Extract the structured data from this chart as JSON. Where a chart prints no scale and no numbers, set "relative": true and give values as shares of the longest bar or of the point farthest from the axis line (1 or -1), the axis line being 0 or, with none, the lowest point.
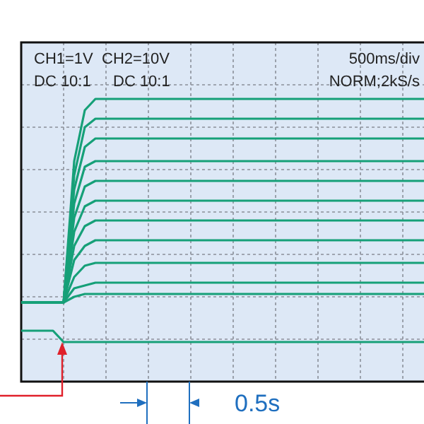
{
  "chart_data": {
    "type": "line",
    "relative": true,
    "grid": true,
    "legend": false,
    "marker": "none",
    "line_style": "solid",
    "categories": [
      null,
      null,
      null,
      null,
      null,
      null,
      null,
      null,
      null,
      null,
      null,
      null,
      null,
      null,
      null,
      null,
      null,
      null,
      null,
      null,
      null,
      null,
      null,
      null,
      null,
      null,
      null,
      null,
      null,
      null,
      null,
      null,
      null,
      null,
      null,
      null,
      null,
      null,
      null
    ],
    "series": [
      {
        "color": "#16a078",
        "values": [
          0.28,
          0.28,
          0.28,
          0.28,
          0.28,
          0.78,
          0.96,
          1.0,
          1.0,
          1.0,
          1.0,
          1.0,
          1.0,
          1.0,
          1.0,
          1.0,
          1.0,
          1.0,
          1.0,
          1.0,
          1.0,
          1.0,
          1.0,
          1.0,
          1.0,
          1.0,
          1.0,
          1.0,
          1.0,
          1.0,
          1.0,
          1.0,
          1.0,
          1.0,
          1.0,
          1.0,
          1.0,
          1.0,
          1.0
        ]
      },
      {
        "color": "#16a078",
        "values": [
          0.28,
          0.28,
          0.28,
          0.28,
          0.28,
          0.73,
          0.9,
          0.93,
          0.93,
          0.93,
          0.93,
          0.93,
          0.93,
          0.93,
          0.93,
          0.93,
          0.93,
          0.93,
          0.93,
          0.93,
          0.93,
          0.93,
          0.93,
          0.93,
          0.93,
          0.93,
          0.93,
          0.93,
          0.93,
          0.93,
          0.93,
          0.93,
          0.93,
          0.93,
          0.93,
          0.93,
          0.93,
          0.93,
          0.93
        ]
      },
      {
        "color": "#16a078",
        "values": [
          0.28,
          0.28,
          0.28,
          0.28,
          0.28,
          0.68,
          0.83,
          0.86,
          0.86,
          0.86,
          0.86,
          0.86,
          0.86,
          0.86,
          0.86,
          0.86,
          0.86,
          0.86,
          0.86,
          0.86,
          0.86,
          0.86,
          0.86,
          0.86,
          0.86,
          0.86,
          0.86,
          0.86,
          0.86,
          0.86,
          0.86,
          0.86,
          0.86,
          0.86,
          0.86,
          0.86,
          0.86,
          0.86,
          0.86
        ]
      },
      {
        "color": "#16a078",
        "values": [
          0.28,
          0.28,
          0.28,
          0.28,
          0.28,
          0.63,
          0.76,
          0.78,
          0.78,
          0.78,
          0.78,
          0.78,
          0.78,
          0.78,
          0.78,
          0.78,
          0.78,
          0.78,
          0.78,
          0.78,
          0.78,
          0.78,
          0.78,
          0.78,
          0.78,
          0.78,
          0.78,
          0.78,
          0.78,
          0.78,
          0.78,
          0.78,
          0.78,
          0.78,
          0.78,
          0.78,
          0.78,
          0.78,
          0.78
        ]
      },
      {
        "color": "#16a078",
        "values": [
          0.28,
          0.28,
          0.28,
          0.28,
          0.28,
          0.58,
          0.69,
          0.71,
          0.71,
          0.71,
          0.71,
          0.71,
          0.71,
          0.71,
          0.71,
          0.71,
          0.71,
          0.71,
          0.71,
          0.71,
          0.71,
          0.71,
          0.71,
          0.71,
          0.71,
          0.71,
          0.71,
          0.71,
          0.71,
          0.71,
          0.71,
          0.71,
          0.71,
          0.71,
          0.71,
          0.71,
          0.71,
          0.71,
          0.71
        ]
      },
      {
        "color": "#16a078",
        "values": [
          0.28,
          0.28,
          0.28,
          0.28,
          0.28,
          0.53,
          0.62,
          0.64,
          0.64,
          0.64,
          0.64,
          0.64,
          0.64,
          0.64,
          0.64,
          0.64,
          0.64,
          0.64,
          0.64,
          0.64,
          0.64,
          0.64,
          0.64,
          0.64,
          0.64,
          0.64,
          0.64,
          0.64,
          0.64,
          0.64,
          0.64,
          0.64,
          0.64,
          0.64,
          0.64,
          0.64,
          0.64,
          0.64,
          0.64
        ]
      },
      {
        "color": "#16a078",
        "values": [
          0.28,
          0.28,
          0.28,
          0.28,
          0.28,
          0.48,
          0.55,
          0.57,
          0.57,
          0.57,
          0.57,
          0.57,
          0.57,
          0.57,
          0.57,
          0.57,
          0.57,
          0.57,
          0.57,
          0.57,
          0.57,
          0.57,
          0.57,
          0.57,
          0.57,
          0.57,
          0.57,
          0.57,
          0.57,
          0.57,
          0.57,
          0.57,
          0.57,
          0.57,
          0.57,
          0.57,
          0.57,
          0.57,
          0.57
        ]
      },
      {
        "color": "#16a078",
        "values": [
          0.28,
          0.28,
          0.28,
          0.28,
          0.28,
          0.43,
          0.48,
          0.5,
          0.5,
          0.5,
          0.5,
          0.5,
          0.5,
          0.5,
          0.5,
          0.5,
          0.5,
          0.5,
          0.5,
          0.5,
          0.5,
          0.5,
          0.5,
          0.5,
          0.5,
          0.5,
          0.5,
          0.5,
          0.5,
          0.5,
          0.5,
          0.5,
          0.5,
          0.5,
          0.5,
          0.5,
          0.5,
          0.5,
          0.5
        ]
      },
      {
        "color": "#16a078",
        "values": [
          0.28,
          0.28,
          0.28,
          0.28,
          0.28,
          0.37,
          0.41,
          0.42,
          0.42,
          0.42,
          0.42,
          0.42,
          0.42,
          0.42,
          0.42,
          0.42,
          0.42,
          0.42,
          0.42,
          0.42,
          0.42,
          0.42,
          0.42,
          0.42,
          0.42,
          0.42,
          0.42,
          0.42,
          0.42,
          0.42,
          0.42,
          0.42,
          0.42,
          0.42,
          0.42,
          0.42,
          0.42,
          0.42,
          0.42
        ]
      },
      {
        "color": "#16a078",
        "values": [
          0.28,
          0.28,
          0.28,
          0.28,
          0.28,
          0.33,
          0.34,
          0.35,
          0.35,
          0.35,
          0.35,
          0.35,
          0.35,
          0.35,
          0.35,
          0.35,
          0.35,
          0.35,
          0.35,
          0.35,
          0.35,
          0.35,
          0.35,
          0.35,
          0.35,
          0.35,
          0.35,
          0.35,
          0.35,
          0.35,
          0.35,
          0.35,
          0.35,
          0.35,
          0.35,
          0.35,
          0.35,
          0.35,
          0.35
        ]
      },
      {
        "color": "#16a078",
        "values": [
          0.28,
          0.28,
          0.28,
          0.28,
          0.28,
          0.3,
          0.31,
          0.31,
          0.31,
          0.31,
          0.31,
          0.31,
          0.31,
          0.31,
          0.31,
          0.31,
          0.31,
          0.31,
          0.31,
          0.31,
          0.31,
          0.31,
          0.31,
          0.31,
          0.31,
          0.31,
          0.31,
          0.31,
          0.31,
          0.31,
          0.31,
          0.31,
          0.31,
          0.31,
          0.31,
          0.31,
          0.31,
          0.31,
          0.31
        ]
      },
      {
        "color": "#16a078",
        "values": [
          0.18,
          0.18,
          0.18,
          0.18,
          0.14,
          0.14,
          0.14,
          0.14,
          0.14,
          0.14,
          0.14,
          0.14,
          0.14,
          0.14,
          0.14,
          0.14,
          0.14,
          0.14,
          0.14,
          0.14,
          0.14,
          0.14,
          0.14,
          0.14,
          0.14,
          0.14,
          0.14,
          0.14,
          0.14,
          0.14,
          0.14,
          0.14,
          0.14,
          0.14,
          0.14,
          0.14,
          0.14,
          0.14,
          0.14
        ]
      }
    ],
    "annotations": [
      "CH1=1V",
      "DC 10:1",
      "CH2=10V",
      "DC 10:1",
      "500ms/div",
      "NORM;2kS/s",
      "0.5s"
    ]
  }
}
